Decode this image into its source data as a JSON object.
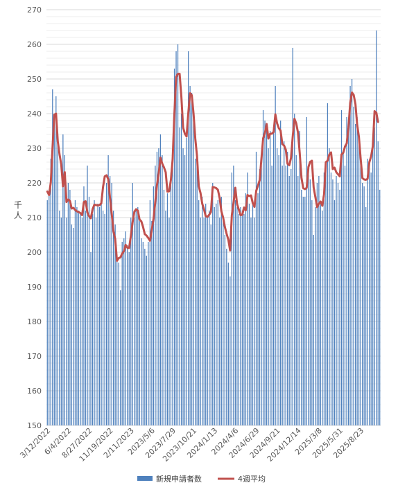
{
  "chart_data": {
    "type": "bar",
    "ylabel": "千人",
    "ylim": [
      150,
      270
    ],
    "yticks": [
      150,
      160,
      170,
      180,
      190,
      200,
      210,
      220,
      230,
      240,
      250,
      260,
      270
    ],
    "ygrid_minor_step": 2,
    "x_tick_labels": [
      "3/12/2022",
      "6/4/2022",
      "8/27/2022",
      "11/19/2022",
      "2/11/2023",
      "2023/5/6",
      "2023/7/29",
      "2023/10/21",
      "2024/1/13",
      "2024/4/6",
      "2024/6/29",
      "2024/9/21",
      "2024/12/14",
      "2025/3/8",
      "2025/5/31",
      "2025/8/23"
    ],
    "x_tick_interval_weeks": 12,
    "legend_position": "bottom",
    "colors": {
      "bars": "#4f81bd",
      "line": "#c0504d",
      "grid": "#d9d9d9"
    },
    "series": [
      {
        "name": "新規申請者数",
        "type": "bar",
        "values": [
          215,
          218,
          227,
          247,
          238,
          245,
          232,
          212,
          210,
          234,
          228,
          210,
          220,
          218,
          208,
          207,
          215,
          213,
          212,
          211,
          210,
          219,
          212,
          225,
          216,
          200,
          211,
          215,
          210,
          214,
          213,
          215,
          212,
          211,
          220,
          228,
          222,
          220,
          212,
          208,
          198,
          197,
          189,
          203,
          204,
          206,
          202,
          200,
          210,
          220,
          210,
          212,
          213,
          209,
          204,
          203,
          201,
          199,
          203,
          215,
          209,
          219,
          225,
          229,
          230,
          234,
          228,
          218,
          212,
          217,
          210,
          223,
          227,
          253,
          258,
          260,
          236,
          240,
          230,
          228,
          233,
          258,
          248,
          246,
          240,
          227,
          225,
          215,
          210,
          216,
          210,
          214,
          210,
          212,
          208,
          220,
          213,
          214,
          215,
          210,
          216,
          210,
          205,
          201,
          197,
          193,
          223,
          225,
          215,
          213,
          211,
          213,
          212,
          211,
          217,
          223,
          214,
          210,
          215,
          210,
          229,
          217,
          224,
          225,
          241,
          238,
          235,
          230,
          235,
          225,
          236,
          248,
          230,
          228,
          238,
          225,
          232,
          225,
          229,
          222,
          224,
          259,
          240,
          228,
          222,
          235,
          218,
          216,
          216,
          239,
          225,
          221,
          215,
          205,
          213,
          220,
          222,
          214,
          212,
          223,
          224,
          243,
          230,
          223,
          221,
          215,
          222,
          220,
          218,
          241,
          229,
          225,
          239,
          236,
          248,
          250,
          242,
          237,
          239,
          232,
          227,
          220,
          219,
          213,
          227,
          226,
          223,
          232,
          236,
          264,
          232,
          218
        ]
      },
      {
        "name": "4週平均",
        "type": "line",
        "values": [
          217.5,
          216.5,
          220.2,
          230.3,
          239.7,
          240,
          232,
          228.3,
          225.3,
          219,
          223.1,
          214.5,
          215.2,
          214.8,
          212.6,
          212.8,
          212.2,
          211.8,
          211.6,
          211.3,
          210.7,
          214.5,
          214.7,
          211.5,
          210.4,
          209.8,
          212.4,
          213.7,
          213.6,
          213.5,
          213.6,
          214.1,
          218.8,
          221.9,
          222.2,
          221.1,
          215.7,
          211.1,
          206,
          203.8,
          197.5,
          198.3,
          198.5,
          199.6,
          200.3,
          202.1,
          201.3,
          201.2,
          204.7,
          208.7,
          211.7,
          212.4,
          212,
          209.4,
          208.9,
          207.3,
          205.2,
          204.8,
          204.1,
          203.3,
          206.4,
          209.6,
          214.4,
          219.4,
          222.8,
          227.3,
          225.6,
          224.5,
          223.1,
          217.5,
          217.6,
          220.9,
          226.9,
          240,
          250.6,
          251.5,
          251.5,
          244.9,
          236,
          234.2,
          233.4,
          240.2,
          245.9,
          245.3,
          240,
          232.8,
          227.7,
          219,
          217.1,
          214,
          212.4,
          210.4,
          210.2,
          210.8,
          211.6,
          218.8,
          218.7,
          218.5,
          218,
          215.6,
          211.8,
          210,
          207.3,
          205.3,
          203.6,
          200.5,
          210.7,
          214.3,
          218.6,
          213.9,
          212.3,
          210.7,
          210.8,
          212.9,
          212.1,
          216.5,
          216.2,
          216.4,
          214.2,
          213.1,
          217.7,
          219.2,
          220.8,
          227,
          232.9,
          234.4,
          237,
          232.8,
          234.2,
          234.2,
          234.7,
          239.8,
          237.2,
          235.8,
          235.1,
          231.2,
          230.8,
          229.6,
          225.5,
          225.1,
          227.2,
          233.5,
          238.5,
          237.2,
          234.5,
          228.6,
          221.5,
          218.5,
          218.2,
          218.6,
          224.6,
          226.1,
          226.4,
          218.7,
          215.9,
          213,
          214,
          214.6,
          213.4,
          216.8,
          226,
          226.4,
          228.2,
          228.8,
          224,
          224.4,
          223.1,
          222.5,
          221.9,
          228.2,
          228.7,
          230.5,
          231.4,
          236,
          243.1,
          246.1,
          245.4,
          242.8,
          236.8,
          233.3,
          227,
          221.4,
          221,
          220.9,
          221.2,
          226,
          227.6,
          230.6,
          240.7,
          240.3,
          237.6
        ]
      }
    ]
  }
}
